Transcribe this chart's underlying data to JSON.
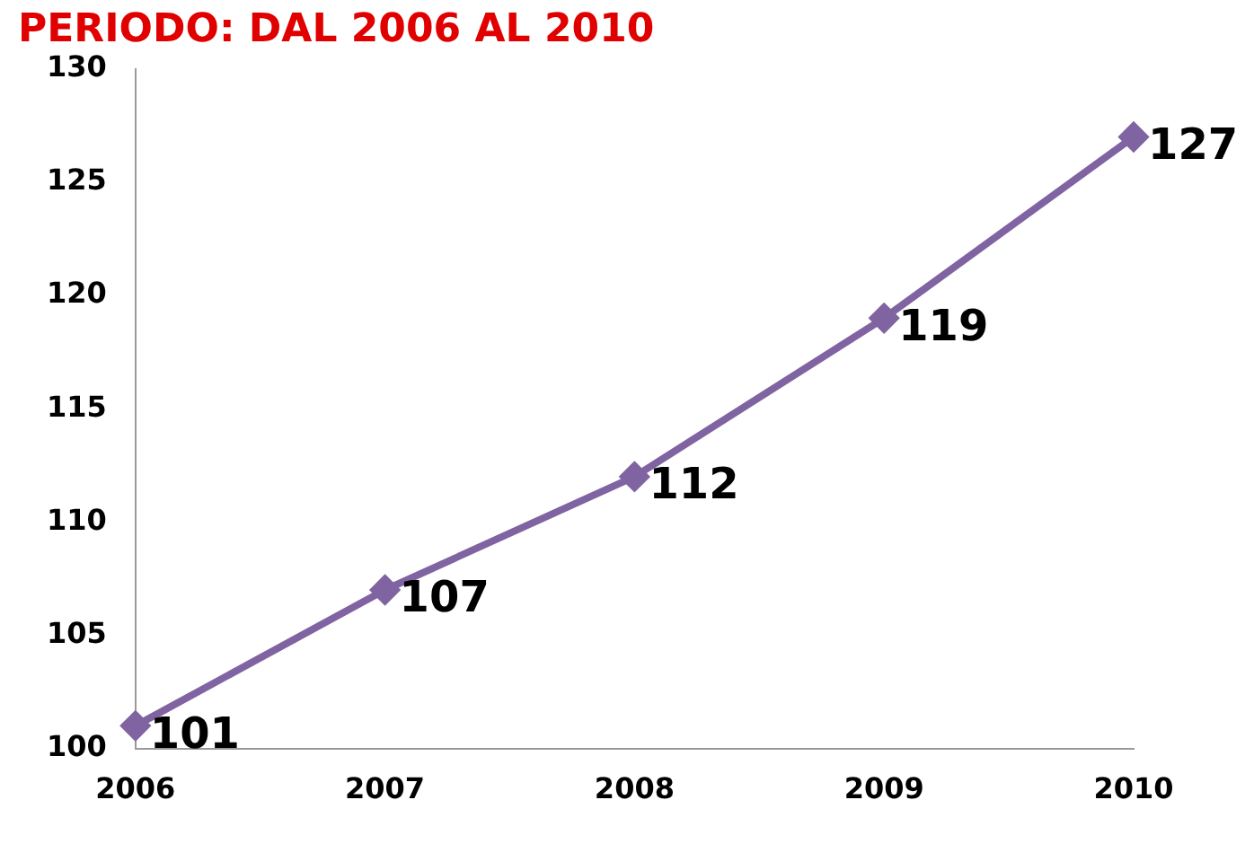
{
  "chart_data": {
    "type": "line",
    "title": "PERIODO: DAL 2006 AL 2010",
    "categories": [
      "2006",
      "2007",
      "2008",
      "2009",
      "2010"
    ],
    "series": [
      {
        "color": "#8064a2",
        "values": [
          101,
          107,
          112,
          119,
          127
        ]
      }
    ],
    "ylim": [
      100,
      130
    ],
    "yticks": [
      100,
      105,
      110,
      115,
      120,
      125,
      130
    ],
    "grid": false,
    "legend": false,
    "marker": "diamond",
    "line_style": "solid",
    "data_labels": true
  }
}
